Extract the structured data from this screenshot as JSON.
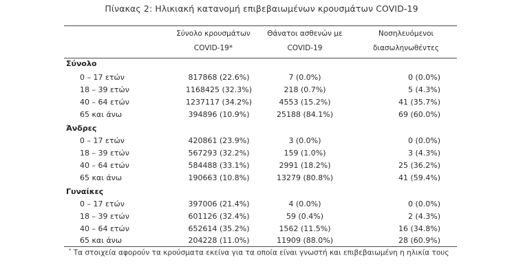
{
  "caption": "Πίνακας 2: Ηλικιακή κατανομή επιβεβαιωμένων κρουσμάτων COVID-19",
  "headers": {
    "cases": [
      "Σύνολο κρουσμάτων",
      "COVID-19*"
    ],
    "deaths": [
      "Θάνατοι ασθενών με",
      "COVID-19"
    ],
    "icu": [
      "Νοσηλευόμενοι",
      "διασωληνωθέντες"
    ]
  },
  "groups": [
    {
      "title": "Σύνολο",
      "rows": [
        {
          "age": "0 – 17 ετών",
          "cases": "817868 (22.6%)",
          "deaths": "7 (0.0%)",
          "icu": "0 (0.0%)"
        },
        {
          "age": "18 – 39 ετών",
          "cases": "1168425 (32.3%)",
          "deaths": "218 (0.7%)",
          "icu": "5 (4.3%)"
        },
        {
          "age": "40 – 64 ετών",
          "cases": "1237117 (34.2%)",
          "deaths": "4553 (15.2%)",
          "icu": "41 (35.7%)"
        },
        {
          "age": "65 και άνω",
          "cases": "394896 (10.9%)",
          "deaths": "25188 (84.1%)",
          "icu": "69 (60.0%)"
        }
      ]
    },
    {
      "title": "Άνδρες",
      "rows": [
        {
          "age": "0 – 17 ετών",
          "cases": "420861 (23.9%)",
          "deaths": "3 (0.0%)",
          "icu": "0 (0.0%)"
        },
        {
          "age": "18 – 39 ετών",
          "cases": "567293 (32.2%)",
          "deaths": "159 (1.0%)",
          "icu": "3 (4.3%)"
        },
        {
          "age": "40 – 64 ετών",
          "cases": "584488 (33.1%)",
          "deaths": "2991 (18.2%)",
          "icu": "25 (36.2%)"
        },
        {
          "age": "65 και άνω",
          "cases": "190663 (10.8%)",
          "deaths": "13279 (80.8%)",
          "icu": "41 (59.4%)"
        }
      ]
    },
    {
      "title": "Γυναίκες",
      "rows": [
        {
          "age": "0 – 17 ετών",
          "cases": "397006 (21.4%)",
          "deaths": "4 (0.0%)",
          "icu": "0 (0.0%)"
        },
        {
          "age": "18 – 39 ετών",
          "cases": "601126 (32.4%)",
          "deaths": "59 (0.4%)",
          "icu": "2 (4.3%)"
        },
        {
          "age": "40 – 64 ετών",
          "cases": "652614 (35.2%)",
          "deaths": "1562 (11.5%)",
          "icu": "16 (34.8%)"
        },
        {
          "age": "65 και άνω",
          "cases": "204228 (11.0%)",
          "deaths": "11909 (88.0%)",
          "icu": "28 (60.9%)"
        }
      ]
    }
  ],
  "footnote": {
    "mark": "*",
    "text": "Τα στοιχεία αφορούν τα κρούσματα εκείνα για τα οποία είναι γνωστή και επιβεβαιωμένη η ηλικία τους"
  }
}
